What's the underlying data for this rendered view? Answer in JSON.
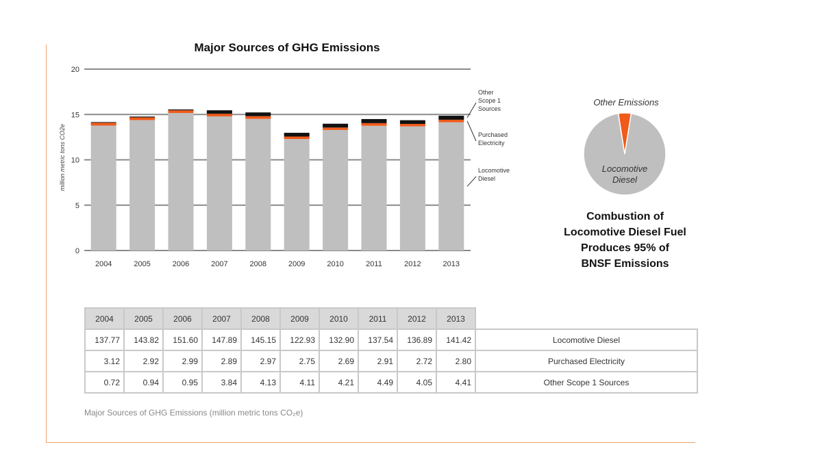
{
  "chart_data": {
    "type": "bar",
    "stacked": true,
    "title": "Major Sources of GHG Emissions",
    "ylabel": "million metric tons CO2e",
    "ylim": [
      0,
      20
    ],
    "yticks": [
      0,
      5,
      10,
      15,
      20
    ],
    "grid": true,
    "categories": [
      "2004",
      "2005",
      "2006",
      "2007",
      "2008",
      "2009",
      "2010",
      "2011",
      "2012",
      "2013"
    ],
    "series": [
      {
        "name": "Locomotive Diesel",
        "color": "#bfbfbf",
        "values": [
          13.777,
          14.382,
          15.16,
          14.789,
          14.515,
          12.293,
          13.29,
          13.754,
          13.689,
          14.142
        ]
      },
      {
        "name": "Purchased Electricity",
        "color": "#f05a1a",
        "values": [
          0.312,
          0.292,
          0.299,
          0.289,
          0.297,
          0.275,
          0.269,
          0.291,
          0.272,
          0.28
        ]
      },
      {
        "name": "Other Scope 1 Sources",
        "color": "#111111",
        "values": [
          0.072,
          0.094,
          0.095,
          0.384,
          0.413,
          0.411,
          0.421,
          0.449,
          0.405,
          0.441
        ]
      }
    ],
    "legend_labels": [
      {
        "series": 2,
        "lines": [
          "Other",
          "Scope 1",
          "Sources"
        ]
      },
      {
        "series": 1,
        "lines": [
          "Purchased",
          "Electricity"
        ]
      },
      {
        "series": 0,
        "lines": [
          "Locomotive",
          "Diesel"
        ]
      }
    ],
    "pie": {
      "slices": [
        {
          "name": "Locomotive Diesel",
          "label_lines": [
            "Locomotive",
            "Diesel"
          ],
          "value": 95,
          "color": "#bfbfbf"
        },
        {
          "name": "Other Emissions",
          "label_lines": [
            "Other Emissions"
          ],
          "value": 5,
          "color": "#f05a1a"
        }
      ],
      "caption_lines": [
        "Combustion of",
        "Locomotive Diesel Fuel",
        "Produces 95% of",
        "BNSF Emissions"
      ]
    }
  },
  "table": {
    "years": [
      "2004",
      "2005",
      "2006",
      "2007",
      "2008",
      "2009",
      "2010",
      "2011",
      "2012",
      "2013"
    ],
    "rows": [
      {
        "name": "Locomotive Diesel",
        "values": [
          "137.77",
          "143.82",
          "151.60",
          "147.89",
          "145.15",
          "122.93",
          "132.90",
          "137.54",
          "136.89",
          "141.42"
        ]
      },
      {
        "name": "Purchased Electricity",
        "values": [
          "3.12",
          "2.92",
          "2.99",
          "2.89",
          "2.97",
          "2.75",
          "2.69",
          "2.91",
          "2.72",
          "2.80"
        ]
      },
      {
        "name": "Other Scope 1 Sources",
        "values": [
          "0.72",
          "0.94",
          "0.95",
          "3.84",
          "4.13",
          "4.11",
          "4.21",
          "4.49",
          "4.05",
          "4.41"
        ]
      }
    ]
  },
  "caption": "Major Sources of GHG Emissions (million metric tons CO₂e)"
}
